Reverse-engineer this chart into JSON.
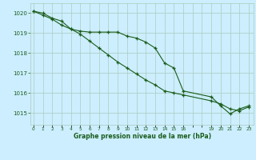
{
  "line1_x": [
    0,
    1,
    2,
    3,
    4,
    5,
    6,
    7,
    8,
    9,
    10,
    11,
    12,
    13,
    14,
    15,
    16,
    19,
    20,
    21,
    22,
    23
  ],
  "line1_y": [
    1020.1,
    1020.0,
    1019.75,
    1019.6,
    1019.2,
    1019.1,
    1019.05,
    1019.05,
    1019.05,
    1019.05,
    1018.85,
    1018.75,
    1018.55,
    1018.25,
    1017.5,
    1017.25,
    1016.1,
    1015.8,
    1015.35,
    1014.95,
    1015.2,
    1015.35
  ],
  "line2_x": [
    0,
    1,
    2,
    3,
    4,
    5,
    6,
    7,
    8,
    9,
    10,
    11,
    12,
    13,
    14,
    15,
    16,
    19,
    20,
    21,
    22,
    23
  ],
  "line2_y": [
    1020.1,
    1019.9,
    1019.7,
    1019.4,
    1019.2,
    1018.95,
    1018.6,
    1018.25,
    1017.9,
    1017.55,
    1017.25,
    1016.95,
    1016.65,
    1016.4,
    1016.1,
    1016.0,
    1015.9,
    1015.6,
    1015.45,
    1015.2,
    1015.1,
    1015.3
  ],
  "line_color": "#1a5c1a",
  "bg_color": "#cceeff",
  "grid_color": "#aaccbb",
  "tick_label_color": "#1a5c1a",
  "xlabel": "Graphe pression niveau de la mer (hPa)",
  "xlabel_color": "#1a5c1a",
  "xtick_labels": [
    "0",
    "1",
    "2",
    "3",
    "4",
    "5",
    "6",
    "7",
    "8",
    "9",
    "10",
    "11",
    "12",
    "13",
    "14",
    "15",
    "16",
    "",
    "",
    "19",
    "20",
    "21",
    "22",
    "23"
  ],
  "xtick_positions": [
    0,
    1,
    2,
    3,
    4,
    5,
    6,
    7,
    8,
    9,
    10,
    11,
    12,
    13,
    14,
    15,
    16,
    17,
    18,
    19,
    20,
    21,
    22,
    23
  ],
  "ylim": [
    1014.4,
    1020.5
  ],
  "yticks": [
    1015,
    1016,
    1017,
    1018,
    1019,
    1020
  ],
  "xlim": [
    -0.3,
    23.5
  ]
}
